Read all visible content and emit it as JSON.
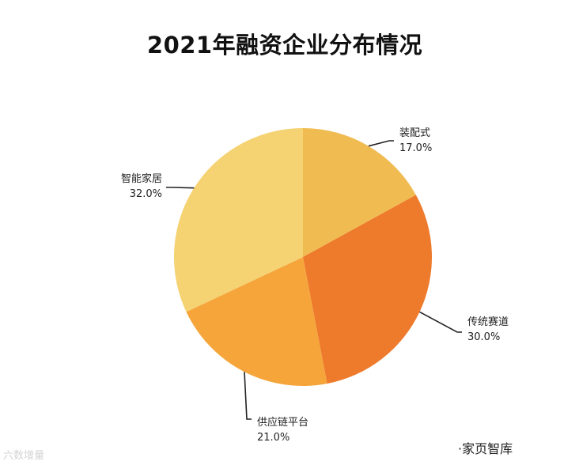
{
  "chart_data": {
    "type": "pie",
    "title": "2021年融资企业分布情况",
    "slices": [
      {
        "label": "装配式",
        "value": 17.0,
        "value_label": "17.0%",
        "color": "#F0BC52"
      },
      {
        "label": "传统赛道",
        "value": 30.0,
        "value_label": "30.0%",
        "color": "#EE7A2C"
      },
      {
        "label": "供应链平台",
        "value": 21.0,
        "value_label": "21.0%",
        "color": "#F5A53A"
      },
      {
        "label": "智能家居",
        "value": 32.0,
        "value_label": "32.0%",
        "color": "#F5D272"
      }
    ],
    "start": "12 o'clock",
    "direction": "clockwise",
    "legend": "none, slice labels with leader lines"
  },
  "source_text": "·家页智库",
  "watermark_text": "六数增量"
}
